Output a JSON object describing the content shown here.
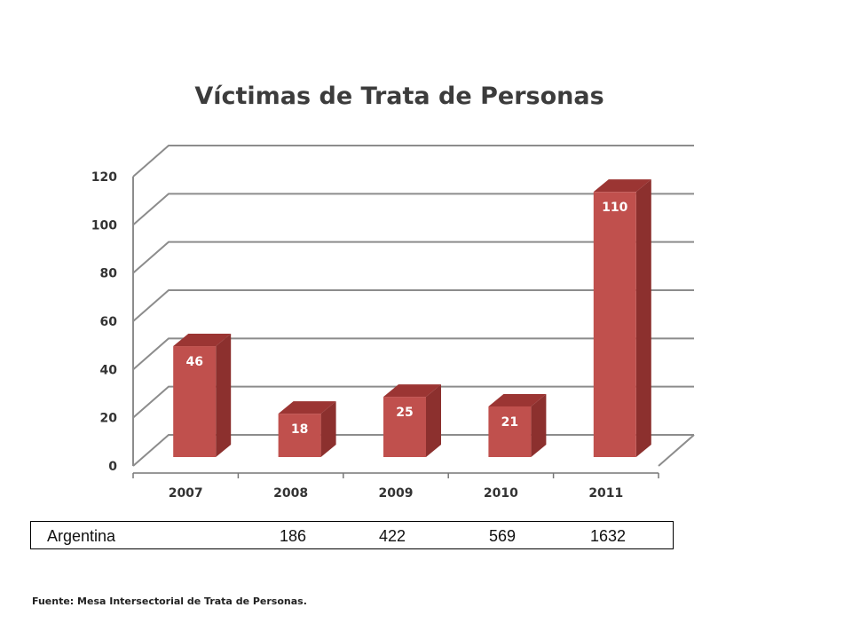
{
  "colors": {
    "flag_blue": "#1f6bb7",
    "flag_red": "#ef4346",
    "bar_front": "#c0504d",
    "bar_side": "#8c302e",
    "bar_top": "#9b3533",
    "grid": "#8c8c8c"
  },
  "chart_data": {
    "type": "bar",
    "title": "Víctimas de Trata de Personas",
    "categories": [
      "2007",
      "2008",
      "2009",
      "2010",
      "2011"
    ],
    "values": [
      46,
      18,
      25,
      21,
      110
    ],
    "y_ticks": [
      "0",
      "20",
      "40",
      "60",
      "80",
      "100",
      "120"
    ],
    "ylim": [
      0,
      120
    ],
    "grid": true,
    "style": "3d-column"
  },
  "table": {
    "label": "Argentina",
    "values": [
      "186",
      "422",
      "569",
      "1632"
    ]
  },
  "source": "Fuente: Mesa Intersectorial de Trata de Personas."
}
